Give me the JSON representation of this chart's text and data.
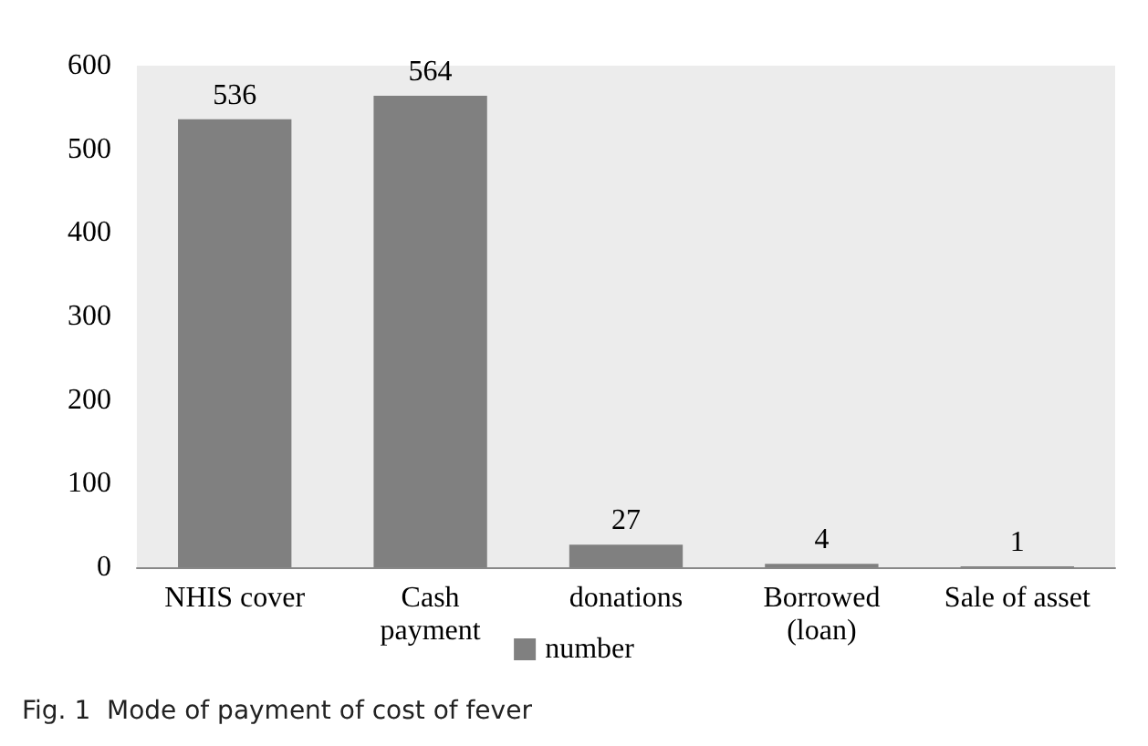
{
  "chart_data": {
    "type": "bar",
    "categories": [
      "NHIS cover",
      "Cash\npayment",
      "donations",
      "Borrowed\n(loan)",
      "Sale of asset"
    ],
    "series": [
      {
        "name": "number",
        "color": "#808080",
        "values": [
          536,
          564,
          27,
          4,
          1
        ]
      }
    ],
    "ylim": [
      0,
      600
    ],
    "yticks": [
      0,
      100,
      200,
      300,
      400,
      500,
      600
    ],
    "grid": false,
    "legend": "bottom",
    "data_labels": true,
    "annotations": [
      "Fig. 1  Mode of payment of cost of fever"
    ]
  }
}
